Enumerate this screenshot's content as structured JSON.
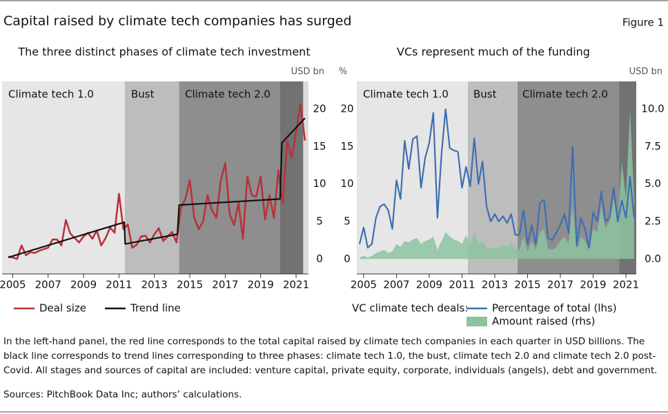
{
  "header": {
    "title": "Capital raised by climate tech companies has surged",
    "label": "Figure 1"
  },
  "notes": "In the left-hand panel, the red line corresponds to the total capital raised by climate tech companies in each quarter in USD billions. The black line corresponds to trend lines corresponding to three phases: climate tech 1.0, the bust, climate tech 2.0 and climate tech 2.0 post-Covid. All stages and sources of capital are included: venture capital, private equity, corporate, individuals (angels), debt and government.",
  "sources": "Sources: PitchBook Data Inc; authors’ calculations.",
  "chart_data": [
    {
      "type": "line",
      "title": "The three distinct phases of climate tech investment",
      "y_label": "USD bn",
      "xlim": [
        2004.4,
        2021.7
      ],
      "xticks": [
        2005,
        2007,
        2009,
        2011,
        2013,
        2015,
        2017,
        2019,
        2021
      ],
      "ylim": [
        -2,
        23.7
      ],
      "yticks": [
        0,
        5,
        10,
        15,
        20
      ],
      "phases": [
        {
          "label": "Climate tech 1.0",
          "start": 2004.4,
          "end": 2011.33,
          "color": "#e6e6e6"
        },
        {
          "label": "Bust",
          "start": 2011.33,
          "end": 2014.4,
          "color": "#bdbdbd"
        },
        {
          "label": "Climate tech 2.0",
          "start": 2014.4,
          "end": 2020.1,
          "color": "#8e8e8e"
        },
        {
          "start": 2020.1,
          "end": 2021.4,
          "color": "#727272"
        }
      ],
      "series": [
        {
          "name": "Deal size",
          "color": "#b8323a",
          "x": [
            2004.75,
            2005,
            2005.25,
            2005.5,
            2005.75,
            2006,
            2006.25,
            2006.5,
            2006.75,
            2007,
            2007.25,
            2007.5,
            2007.75,
            2008,
            2008.25,
            2008.5,
            2008.75,
            2009,
            2009.25,
            2009.5,
            2009.75,
            2010,
            2010.25,
            2010.5,
            2010.75,
            2011,
            2011.25,
            2011.5,
            2011.75,
            2012,
            2012.25,
            2012.5,
            2012.75,
            2013,
            2013.25,
            2013.5,
            2013.75,
            2014,
            2014.25,
            2014.5,
            2014.75,
            2015,
            2015.25,
            2015.5,
            2015.75,
            2016,
            2016.25,
            2016.5,
            2016.75,
            2017,
            2017.25,
            2017.5,
            2017.75,
            2018,
            2018.25,
            2018.5,
            2018.75,
            2019,
            2019.25,
            2019.5,
            2019.75,
            2020,
            2020.25,
            2020.5,
            2020.75,
            2021,
            2021.25,
            2021.5
          ],
          "values": [
            0.3,
            0.2,
            0,
            1.8,
            0.5,
            0.9,
            0.8,
            1.1,
            1.3,
            1.5,
            2.6,
            2.6,
            1.8,
            5.2,
            3.4,
            2.8,
            2.2,
            3.0,
            3.5,
            2.7,
            3.8,
            1.8,
            2.8,
            4.2,
            3.5,
            8.7,
            4.0,
            4.6,
            1.5,
            1.9,
            3.0,
            3.1,
            2.2,
            3.3,
            4.1,
            2.4,
            3.0,
            3.6,
            2.2,
            6.8,
            8.0,
            10.5,
            5.5,
            4.0,
            5.0,
            8.5,
            6.5,
            5.5,
            10.5,
            12.8,
            6.0,
            4.5,
            7.5,
            2.7,
            11.0,
            8.5,
            8.3,
            11.0,
            5.3,
            8.5,
            5.5,
            11.8,
            7.5,
            15.8,
            13.5,
            17.0,
            20.7,
            15.8
          ]
        },
        {
          "name": "Trend line",
          "color": "#111111",
          "x": [
            2004.75,
            2011.3,
            2011.35,
            2014.3,
            2014.4,
            2020.1,
            2020.2,
            2021.5
          ],
          "values": [
            0.2,
            4.9,
            2.0,
            3.3,
            7.2,
            8.0,
            15.5,
            18.8
          ]
        }
      ]
    },
    {
      "type": "line",
      "title": "VCs represent much of the funding",
      "y_label": "%",
      "y2_label": "USD bn",
      "legend_title": "VC climate tech deals:",
      "xlim": [
        2004.58,
        2021.63
      ],
      "xticks": [
        2005,
        2007,
        2009,
        2011,
        2013,
        2015,
        2017,
        2019,
        2021
      ],
      "ylim": [
        -2,
        23.7
      ],
      "yticks": [
        0,
        5,
        10,
        15,
        20
      ],
      "y2lim": [
        -1,
        11.85
      ],
      "y2ticks": [
        {
          "value": 0,
          "label": "0.0"
        },
        2.5,
        {
          "value": 5,
          "label": "5.0"
        },
        7.5,
        {
          "value": 10,
          "label": "10.0"
        }
      ],
      "phases": [
        {
          "label": "Climate tech 1.0",
          "start": 2004.58,
          "end": 2011.36,
          "color": "#e6e6e6"
        },
        {
          "label": "Bust",
          "start": 2011.36,
          "end": 2014.39,
          "color": "#bdbdbd"
        },
        {
          "label": "Climate tech 2.0",
          "start": 2014.39,
          "end": 2020.6,
          "color": "#8e8e8e"
        },
        {
          "start": 2020.6,
          "end": 2021.63,
          "color": "#727272"
        }
      ],
      "series": [
        {
          "name": "Amount raised (rhs)",
          "color": "#8cc3a0",
          "fill": "area",
          "axis": "y2",
          "x": [
            2004.75,
            2005,
            2005.25,
            2005.5,
            2005.75,
            2006,
            2006.25,
            2006.5,
            2006.75,
            2007,
            2007.25,
            2007.5,
            2007.75,
            2008,
            2008.25,
            2008.5,
            2008.75,
            2009,
            2009.25,
            2009.5,
            2009.75,
            2010,
            2010.25,
            2010.5,
            2010.75,
            2011,
            2011.25,
            2011.5,
            2011.75,
            2012,
            2012.25,
            2012.5,
            2012.75,
            2013,
            2013.25,
            2013.5,
            2013.75,
            2014,
            2014.25,
            2014.5,
            2014.75,
            2015,
            2015.25,
            2015.5,
            2015.75,
            2016,
            2016.25,
            2016.5,
            2016.75,
            2017,
            2017.25,
            2017.5,
            2017.75,
            2018,
            2018.25,
            2018.5,
            2018.75,
            2019,
            2019.25,
            2019.5,
            2019.75,
            2020,
            2020.25,
            2020.5,
            2020.75,
            2021,
            2021.25,
            2021.5
          ],
          "values": [
            0.1,
            0.2,
            0.1,
            0.2,
            0.4,
            0.5,
            0.6,
            0.4,
            0.5,
            1.0,
            0.8,
            1.2,
            1.1,
            1.3,
            1.4,
            1.0,
            1.2,
            1.3,
            1.5,
            0.6,
            1.2,
            1.8,
            1.5,
            1.3,
            1.2,
            1.0,
            1.6,
            1.0,
            1.8,
            1.0,
            1.2,
            0.7,
            0.7,
            0.8,
            0.7,
            0.9,
            0.8,
            1.1,
            0.6,
            0.6,
            1.5,
            0.5,
            1.2,
            0.6,
            1.8,
            2.0,
            0.7,
            0.6,
            0.8,
            1.2,
            1.5,
            1.0,
            3.5,
            0.6,
            1.5,
            1.2,
            0.6,
            2.0,
            1.8,
            3.5,
            2.0,
            2.5,
            4.0,
            2.5,
            6.5,
            4.0,
            10.0,
            4.0
          ]
        },
        {
          "name": "Percentage of total (lhs)",
          "color": "#3d6eb4",
          "x": [
            2004.75,
            2005,
            2005.25,
            2005.5,
            2005.75,
            2006,
            2006.25,
            2006.5,
            2006.75,
            2007,
            2007.25,
            2007.5,
            2007.75,
            2008,
            2008.25,
            2008.5,
            2008.75,
            2009,
            2009.25,
            2009.5,
            2009.75,
            2010,
            2010.25,
            2010.5,
            2010.75,
            2011,
            2011.25,
            2011.5,
            2011.75,
            2012,
            2012.25,
            2012.5,
            2012.75,
            2013,
            2013.25,
            2013.5,
            2013.75,
            2014,
            2014.25,
            2014.5,
            2014.75,
            2015,
            2015.25,
            2015.5,
            2015.75,
            2016,
            2016.25,
            2016.5,
            2016.75,
            2017,
            2017.25,
            2017.5,
            2017.75,
            2018,
            2018.25,
            2018.5,
            2018.75,
            2019,
            2019.25,
            2019.5,
            2019.75,
            2020,
            2020.25,
            2020.5,
            2020.75,
            2021,
            2021.25,
            2021.5
          ],
          "values": [
            2.0,
            4.2,
            1.5,
            2.0,
            5.5,
            7.0,
            7.3,
            6.5,
            4.0,
            10.5,
            8.0,
            15.8,
            12.0,
            16.0,
            16.4,
            9.5,
            13.5,
            15.5,
            19.5,
            5.5,
            14.0,
            20.0,
            14.8,
            14.5,
            14.3,
            9.5,
            12.3,
            9.7,
            16.1,
            10.0,
            13.0,
            7.0,
            5.0,
            6.0,
            5.0,
            5.7,
            4.8,
            6.0,
            3.2,
            3.2,
            6.5,
            2.0,
            4.5,
            2.0,
            7.5,
            7.9,
            2.8,
            2.5,
            3.5,
            4.5,
            6.0,
            3.5,
            15.0,
            1.8,
            5.5,
            4.0,
            1.5,
            6.2,
            5.0,
            9.0,
            5.0,
            5.5,
            9.5,
            5.0,
            7.8,
            5.5,
            11.0,
            5.5
          ]
        }
      ]
    }
  ]
}
